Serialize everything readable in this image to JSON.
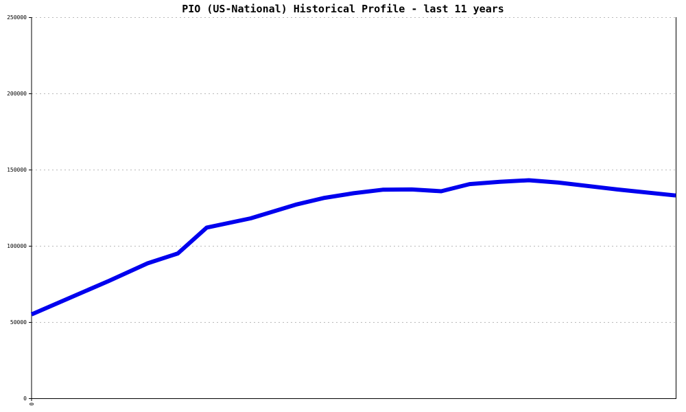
{
  "chart_data": {
    "type": "line",
    "title": "PIO (US-National) Historical Profile - last 11 years",
    "xlabel": "",
    "ylabel": "",
    "x_tick_labels": [
      "0"
    ],
    "y_tick_labels": [
      "0",
      "50000",
      "100000",
      "150000",
      "200000",
      "250000"
    ],
    "ylim": [
      0,
      250000
    ],
    "xlim": [
      0,
      1
    ],
    "grid": true,
    "series": [
      {
        "color": "#0000ee",
        "points": [
          {
            "x": 0.0,
            "y": 55000
          },
          {
            "x": 0.06,
            "y": 66000
          },
          {
            "x": 0.12,
            "y": 77000
          },
          {
            "x": 0.18,
            "y": 88500
          },
          {
            "x": 0.227,
            "y": 95000
          },
          {
            "x": 0.272,
            "y": 112000
          },
          {
            "x": 0.34,
            "y": 118000
          },
          {
            "x": 0.41,
            "y": 127000
          },
          {
            "x": 0.455,
            "y": 131500
          },
          {
            "x": 0.5,
            "y": 134500
          },
          {
            "x": 0.545,
            "y": 136800
          },
          {
            "x": 0.59,
            "y": 137000
          },
          {
            "x": 0.636,
            "y": 135800
          },
          {
            "x": 0.68,
            "y": 140500
          },
          {
            "x": 0.727,
            "y": 142000
          },
          {
            "x": 0.772,
            "y": 143000
          },
          {
            "x": 0.818,
            "y": 141500
          },
          {
            "x": 0.909,
            "y": 137000
          },
          {
            "x": 1.0,
            "y": 133000
          }
        ]
      }
    ]
  }
}
